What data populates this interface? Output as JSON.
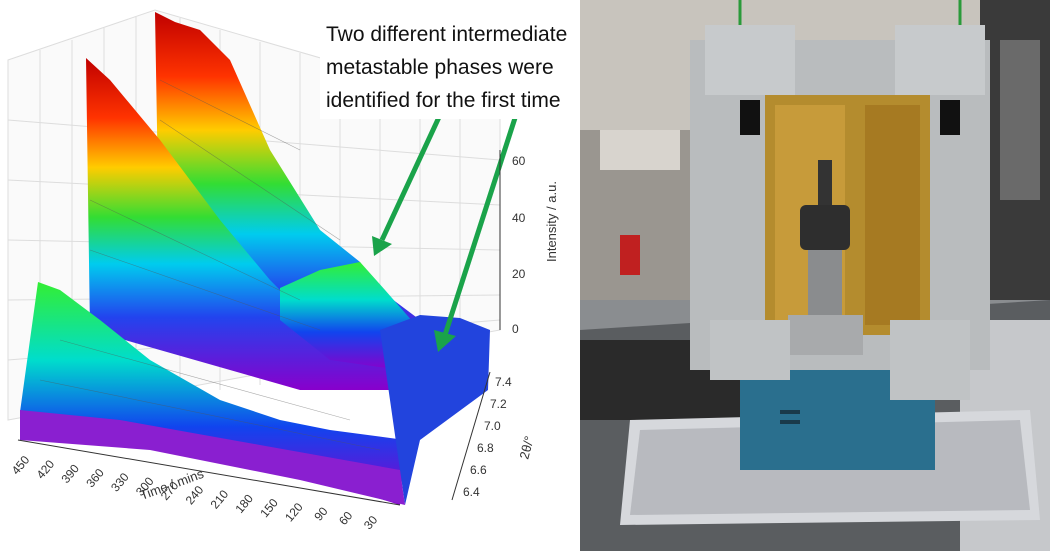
{
  "annotation": {
    "lines": [
      "Two different intermediate",
      "metastable phases were",
      "identified for the first time"
    ]
  },
  "plot": {
    "z_axis_label": "Intensity / a.u.",
    "z_ticks": [
      "60",
      "40",
      "20",
      "0"
    ],
    "y_axis_label": "2θ/°",
    "y_ticks": [
      "7.4",
      "7.2",
      "7.0",
      "6.8",
      "6.6",
      "6.4"
    ],
    "x_axis_label": "Time / mins",
    "x_ticks": [
      "450",
      "420",
      "390",
      "360",
      "330",
      "300",
      "270",
      "240",
      "210",
      "180",
      "150",
      "120",
      "90",
      "60",
      "30"
    ]
  },
  "colors": {
    "arrow": "#1aa34a"
  },
  "photo": {
    "subject": "furnace-apparatus"
  }
}
